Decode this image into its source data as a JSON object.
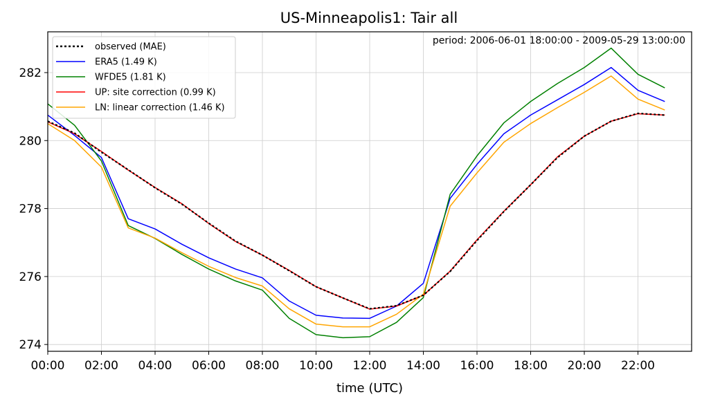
{
  "chart_data": {
    "type": "line",
    "title": "US-Minneapolis1: Tair all",
    "annotation": "period: 2006-06-01 18:00:00 - 2009-05-29 13:00:00",
    "xlabel": "time (UTC)",
    "ylabel": "",
    "x": [
      "00:00",
      "01:00",
      "02:00",
      "03:00",
      "04:00",
      "05:00",
      "06:00",
      "07:00",
      "08:00",
      "09:00",
      "10:00",
      "11:00",
      "12:00",
      "13:00",
      "14:00",
      "15:00",
      "16:00",
      "17:00",
      "18:00",
      "19:00",
      "20:00",
      "21:00",
      "22:00",
      "23:00"
    ],
    "xticks": [
      "00:00",
      "02:00",
      "04:00",
      "06:00",
      "08:00",
      "10:00",
      "12:00",
      "14:00",
      "16:00",
      "18:00",
      "20:00",
      "22:00"
    ],
    "xlim": [
      0,
      24
    ],
    "ylim": [
      273.8,
      283.2
    ],
    "yticks": [
      274,
      276,
      278,
      280,
      282
    ],
    "grid": true,
    "legend_position": "upper-left",
    "series": [
      {
        "name": "ERA5 (1.49 K)",
        "color": "#0000ff",
        "style": "solid",
        "values": [
          280.75,
          280.15,
          279.5,
          277.7,
          277.4,
          276.95,
          276.55,
          276.22,
          275.96,
          275.28,
          274.86,
          274.78,
          274.77,
          275.13,
          275.8,
          278.3,
          279.3,
          280.2,
          280.75,
          281.2,
          281.65,
          282.15,
          281.48,
          281.15
        ]
      },
      {
        "name": "WFDE5 (1.81 K)",
        "color": "#008000",
        "style": "solid",
        "values": [
          281.08,
          280.45,
          279.4,
          277.5,
          277.12,
          276.65,
          276.22,
          275.87,
          275.6,
          274.77,
          274.29,
          274.2,
          274.23,
          274.65,
          275.38,
          278.42,
          279.55,
          280.52,
          281.15,
          281.68,
          282.15,
          282.72,
          281.95,
          281.55
        ]
      },
      {
        "name": "UP: site correction (0.99 K)",
        "color": "#ff0000",
        "style": "solid",
        "values": [
          280.55,
          280.2,
          279.68,
          279.13,
          278.62,
          278.14,
          277.56,
          277.03,
          276.63,
          276.18,
          275.7,
          275.37,
          275.04,
          275.13,
          275.45,
          276.16,
          277.08,
          277.92,
          278.7,
          279.52,
          280.13,
          280.57,
          280.79,
          280.75
        ]
      },
      {
        "name": "LN: linear correction (1.46 K)",
        "color": "#ffa500",
        "style": "solid",
        "values": [
          280.5,
          280.0,
          279.22,
          277.43,
          277.13,
          276.7,
          276.3,
          275.97,
          275.72,
          275.05,
          274.6,
          274.52,
          274.52,
          274.89,
          275.48,
          278.07,
          279.05,
          279.95,
          280.5,
          280.97,
          281.42,
          281.9,
          281.22,
          280.9
        ]
      },
      {
        "name": "observed (MAE)",
        "color": "#000000",
        "style": "dotted",
        "values": [
          280.57,
          280.22,
          279.66,
          279.14,
          278.61,
          278.13,
          277.57,
          277.04,
          276.63,
          276.17,
          275.7,
          275.37,
          275.05,
          275.14,
          275.45,
          276.15,
          277.06,
          277.91,
          278.7,
          279.5,
          280.13,
          280.57,
          280.8,
          280.75
        ]
      }
    ],
    "legend_order": [
      "observed (MAE)",
      "ERA5 (1.49 K)",
      "WFDE5 (1.81 K)",
      "UP: site correction (0.99 K)",
      "LN: linear correction (1.46 K)"
    ]
  }
}
